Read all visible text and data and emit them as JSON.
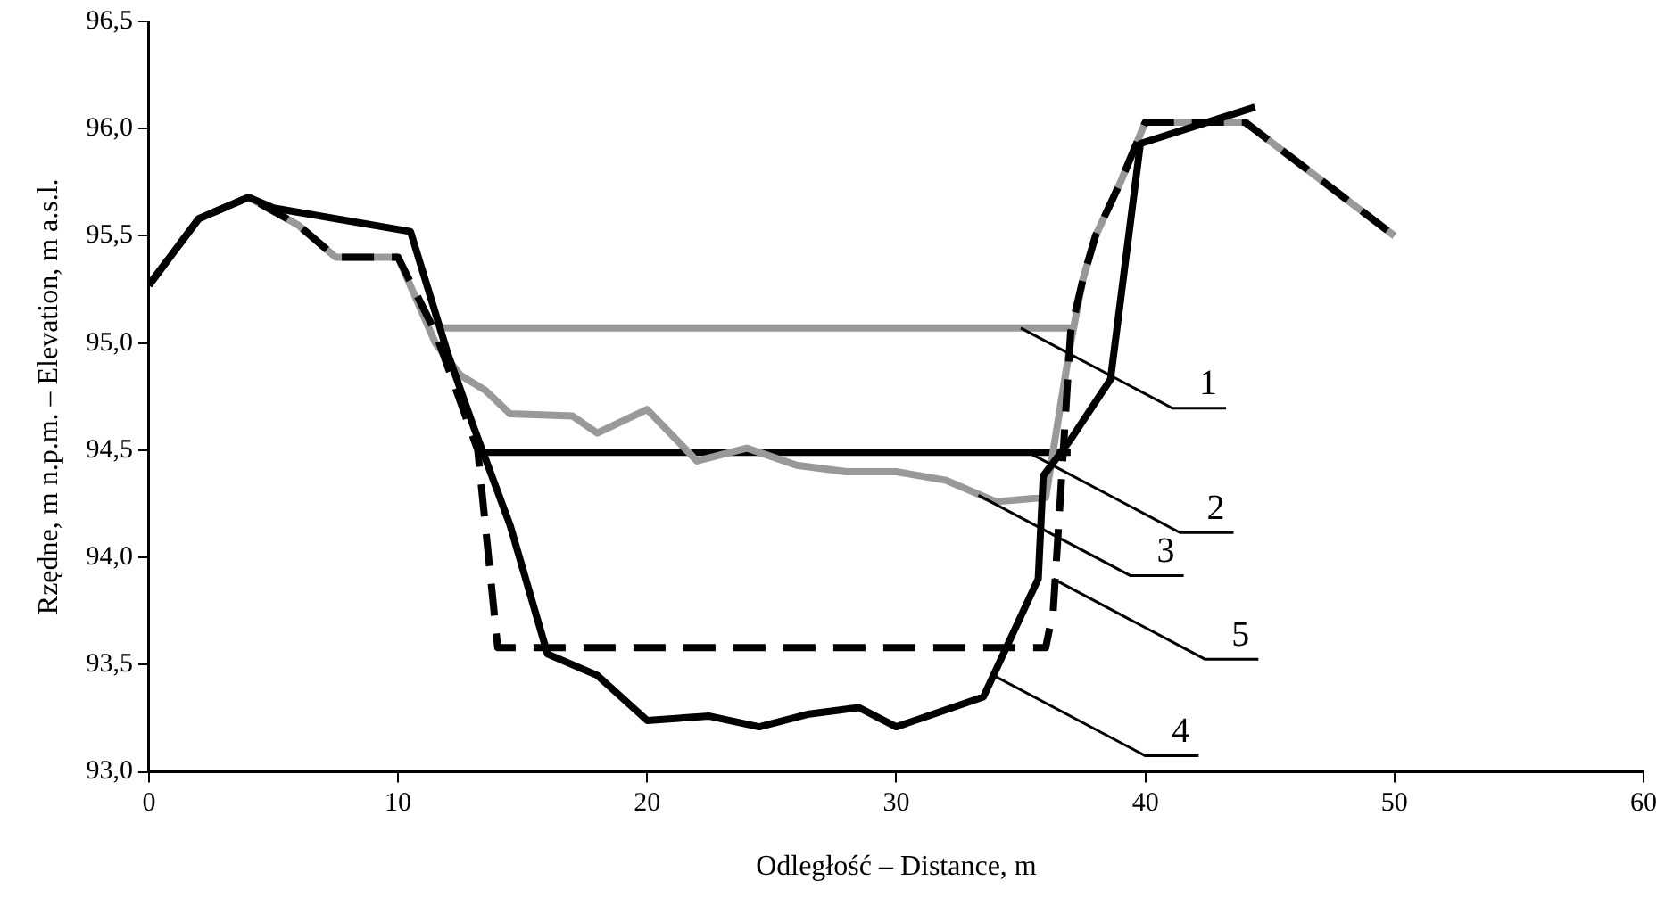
{
  "chart_data": {
    "type": "line",
    "xlabel": "Odległość – Distance, m",
    "ylabel": "Rzędne, m n.p.m. – Elevation, m a.s.l.",
    "xlim": [
      0,
      60
    ],
    "xticks": [
      0,
      10,
      20,
      30,
      40,
      50,
      60
    ],
    "ylim": [
      93,
      96.5
    ],
    "yticks": [
      {
        "value": 93,
        "label": "93,0"
      },
      {
        "value": 93.5,
        "label": "93,5"
      },
      {
        "value": 94,
        "label": "94,0"
      },
      {
        "value": 94.5,
        "label": "94,5"
      },
      {
        "value": 95,
        "label": "95,0"
      },
      {
        "value": 95.5,
        "label": "95,5"
      },
      {
        "value": 96,
        "label": "96,0"
      },
      {
        "value": 96.5,
        "label": "96,5"
      }
    ],
    "grid": false,
    "legend": false,
    "marker": "none",
    "series": [
      {
        "color": "#999999",
        "line_style": "solid",
        "x": [
          11.8,
          37
        ],
        "values": [
          95.07,
          95.07
        ]
      },
      {
        "color": "#000000",
        "line_style": "solid",
        "x": [
          13.2,
          37
        ],
        "values": [
          94.49,
          94.49
        ]
      },
      {
        "color": "#999999",
        "line_style": "solid",
        "x": [
          0,
          2,
          4,
          6,
          7.5,
          10,
          11.5,
          12.5,
          13.5,
          14.5,
          17,
          18,
          20,
          22,
          24,
          26,
          28,
          30,
          32,
          34,
          36,
          37,
          37.5,
          38,
          39,
          40,
          44,
          50
        ],
        "values": [
          95.27,
          95.58,
          95.68,
          95.55,
          95.4,
          95.4,
          95.0,
          94.85,
          94.78,
          94.67,
          94.66,
          94.58,
          94.69,
          94.45,
          94.51,
          94.43,
          94.4,
          94.4,
          94.36,
          94.26,
          94.28,
          95.0,
          95.3,
          95.5,
          95.75,
          96.03,
          96.03,
          95.5
        ]
      },
      {
        "color": "#000000",
        "line_style": "solid",
        "x": [
          0,
          2,
          4,
          5,
          10.5,
          12,
          13,
          14.5,
          16,
          18,
          20,
          22.5,
          24.5,
          26.5,
          28.5,
          30,
          31.5,
          33.5,
          35.7,
          35.9,
          37,
          38.6,
          39.8,
          44.4
        ],
        "values": [
          95.27,
          95.58,
          95.68,
          95.63,
          95.52,
          94.95,
          94.62,
          94.15,
          93.55,
          93.45,
          93.24,
          93.26,
          93.21,
          93.27,
          93.3,
          93.21,
          93.27,
          93.35,
          93.9,
          94.38,
          94.55,
          94.83,
          95.93,
          96.1
        ]
      },
      {
        "color": "#000000",
        "line_style": "dashed",
        "x": [
          0,
          2,
          4,
          6,
          7.5,
          10,
          11.5,
          13.2,
          14,
          36,
          36.3,
          36.6,
          37,
          37.5,
          38,
          39,
          40,
          44,
          50
        ],
        "values": [
          95.27,
          95.58,
          95.68,
          95.55,
          95.4,
          95.4,
          95.05,
          94.5,
          93.58,
          93.58,
          93.75,
          94.3,
          95.05,
          95.3,
          95.5,
          95.75,
          96.03,
          96.03,
          95.5
        ]
      }
    ],
    "annotations": [
      {
        "text": "1",
        "x": 35,
        "y": 95.07
      },
      {
        "text": "2",
        "x": 35.3,
        "y": 94.49
      },
      {
        "text": "3",
        "x": 33.3,
        "y": 94.29
      },
      {
        "text": "5",
        "x": 36.3,
        "y": 93.9
      },
      {
        "text": "4",
        "x": 33.9,
        "y": 93.45
      }
    ]
  }
}
